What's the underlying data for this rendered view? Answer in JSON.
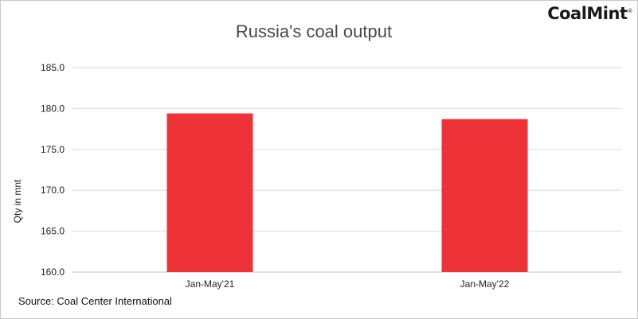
{
  "brand": {
    "name": "CoalMint",
    "mark": "®"
  },
  "source": "Source: Coal Center International",
  "colors": {
    "bar": "#ee3338",
    "grid": "#d9d9d9"
  },
  "chart_data": {
    "type": "bar",
    "title": "Russia's coal output",
    "ylabel": "Qty in mnt",
    "xlabel": "",
    "categories": [
      "Jan-May'21",
      "Jan-May'22"
    ],
    "values": [
      179.4,
      178.7
    ],
    "ylim": [
      160.0,
      185.0
    ],
    "yticks": [
      "160.0",
      "165.0",
      "170.0",
      "175.0",
      "180.0",
      "185.0"
    ],
    "grid": true,
    "legend": "none"
  }
}
